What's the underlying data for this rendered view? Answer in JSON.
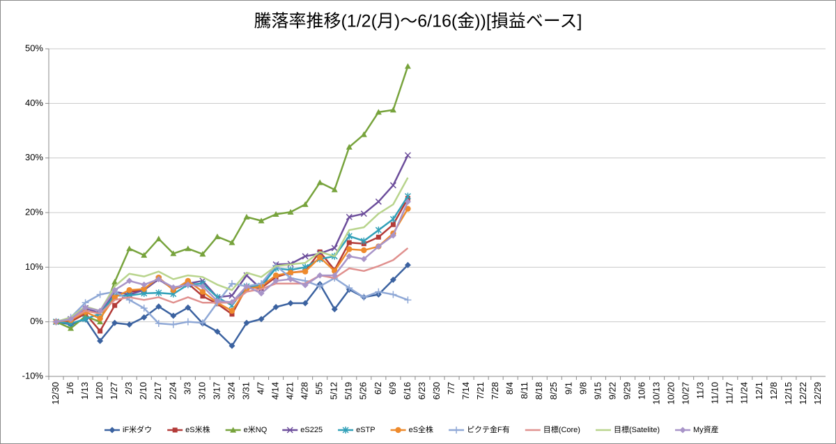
{
  "chart_data": {
    "type": "line",
    "title": "騰落率推移(1/2(月)～6/16(金))[損益ベース]",
    "categories": [
      "12/30",
      "1/6",
      "1/13",
      "1/20",
      "1/27",
      "2/3",
      "2/10",
      "2/17",
      "2/24",
      "3/3",
      "3/10",
      "3/17",
      "3/24",
      "3/31",
      "4/7",
      "4/14",
      "4/21",
      "4/28",
      "5/5",
      "5/12",
      "5/19",
      "5/26",
      "6/2",
      "6/9",
      "6/16",
      "6/23",
      "6/30",
      "7/7",
      "7/14",
      "7/21",
      "7/28",
      "8/4",
      "8/11",
      "8/18",
      "8/25",
      "9/1",
      "9/8",
      "9/15",
      "9/22",
      "9/29",
      "10/6",
      "10/13",
      "10/20",
      "10/27",
      "11/3",
      "11/10",
      "11/17",
      "11/24",
      "12/1",
      "12/8",
      "12/15",
      "12/22",
      "12/29"
    ],
    "ylim": [
      -10,
      50
    ],
    "yticks": [
      {
        "value": -10,
        "label": "-10%"
      },
      {
        "value": 0,
        "label": "0%"
      },
      {
        "value": 10,
        "label": "10%"
      },
      {
        "value": 20,
        "label": "20%"
      },
      {
        "value": 30,
        "label": "30%"
      },
      {
        "value": 40,
        "label": "40%"
      },
      {
        "value": 50,
        "label": "50%"
      }
    ],
    "grid": true,
    "legend": "bottom",
    "series": [
      {
        "name": "iF米ダウ",
        "color": "#3b62a0",
        "marker": "diamond",
        "values": [
          0,
          -0.5,
          0.5,
          -3.5,
          -0.2,
          -0.5,
          0.8,
          2.8,
          1.1,
          2.6,
          -0.3,
          -1.8,
          -4.4,
          -0.2,
          0.5,
          2.7,
          3.4,
          3.4,
          6.9,
          2.3,
          5.9,
          4.5,
          5.0,
          7.7,
          10.4,
          null,
          null,
          null,
          null,
          null,
          null,
          null,
          null,
          null,
          null,
          null,
          null,
          null,
          null,
          null,
          null,
          null,
          null,
          null,
          null,
          null,
          null,
          null,
          null,
          null,
          null,
          null,
          null
        ]
      },
      {
        "name": "eS米株",
        "color": "#b33b38",
        "marker": "square",
        "values": [
          0,
          0,
          1.5,
          -1.7,
          3.0,
          5.5,
          5.8,
          8.0,
          5.9,
          7.0,
          4.7,
          3.3,
          1.4,
          6.3,
          6.2,
          8.2,
          9.0,
          9.3,
          12.8,
          9.5,
          14.5,
          14.3,
          15.5,
          17.8,
          22.6,
          null,
          null,
          null,
          null,
          null,
          null,
          null,
          null,
          null,
          null,
          null,
          null,
          null,
          null,
          null,
          null,
          null,
          null,
          null,
          null,
          null,
          null,
          null,
          null,
          null,
          null,
          null,
          null
        ]
      },
      {
        "name": "e米NQ",
        "color": "#77a33c",
        "marker": "triangle",
        "values": [
          0,
          -1.2,
          1.0,
          0,
          7.3,
          13.4,
          12.2,
          15.2,
          12.5,
          13.4,
          12.4,
          15.6,
          14.5,
          19.2,
          18.5,
          19.7,
          20.1,
          21.5,
          25.5,
          24.2,
          32.0,
          34.3,
          38.4,
          38.8,
          46.8,
          null,
          null,
          null,
          null,
          null,
          null,
          null,
          null,
          null,
          null,
          null,
          null,
          null,
          null,
          null,
          null,
          null,
          null,
          null,
          null,
          null,
          null,
          null,
          null,
          null,
          null,
          null,
          null
        ]
      },
      {
        "name": "eS225",
        "color": "#6c4d9b",
        "marker": "x",
        "values": [
          0,
          0.5,
          2.5,
          1.5,
          5.5,
          5.0,
          5.8,
          7.8,
          6.0,
          7.0,
          7.5,
          4.5,
          4.8,
          8.5,
          6.0,
          10.5,
          10.6,
          12.0,
          12.5,
          13.5,
          19.2,
          19.8,
          22.0,
          25.0,
          30.5,
          null,
          null,
          null,
          null,
          null,
          null,
          null,
          null,
          null,
          null,
          null,
          null,
          null,
          null,
          null,
          null,
          null,
          null,
          null,
          null,
          null,
          null,
          null,
          null,
          null,
          null,
          null,
          null
        ]
      },
      {
        "name": "eSTP",
        "color": "#31a0b8",
        "marker": "star",
        "values": [
          0,
          -0.3,
          0.5,
          1.5,
          4.8,
          4.8,
          5.2,
          5.3,
          5.1,
          6.8,
          7.0,
          4.5,
          3.0,
          6.5,
          6.6,
          9.8,
          9.5,
          10.0,
          11.5,
          12.0,
          15.7,
          14.8,
          16.8,
          18.8,
          23.0,
          null,
          null,
          null,
          null,
          null,
          null,
          null,
          null,
          null,
          null,
          null,
          null,
          null,
          null,
          null,
          null,
          null,
          null,
          null,
          null,
          null,
          null,
          null,
          null,
          null,
          null,
          null,
          null
        ]
      },
      {
        "name": "eS全株",
        "color": "#ee8a2c",
        "marker": "circle",
        "values": [
          0,
          0.3,
          1.8,
          0.6,
          4.5,
          5.8,
          6.0,
          8.1,
          5.8,
          7.5,
          5.5,
          3.5,
          2.0,
          6.0,
          6.5,
          8.5,
          9.0,
          9.2,
          11.8,
          9.3,
          13.3,
          13.1,
          13.8,
          16.2,
          20.7,
          null,
          null,
          null,
          null,
          null,
          null,
          null,
          null,
          null,
          null,
          null,
          null,
          null,
          null,
          null,
          null,
          null,
          null,
          null,
          null,
          null,
          null,
          null,
          null,
          null,
          null,
          null,
          null
        ]
      },
      {
        "name": "ピクテ金F有",
        "color": "#8fa8d6",
        "marker": "plus",
        "values": [
          0,
          0.8,
          3.5,
          5.0,
          5.5,
          4.0,
          2.5,
          -0.3,
          -0.5,
          0,
          -0.2,
          3.5,
          7.0,
          6.5,
          7.0,
          10.3,
          8.0,
          7.5,
          6.5,
          8.0,
          6.2,
          4.5,
          5.5,
          5.0,
          4.0,
          null,
          null,
          null,
          null,
          null,
          null,
          null,
          null,
          null,
          null,
          null,
          null,
          null,
          null,
          null,
          null,
          null,
          null,
          null,
          null,
          null,
          null,
          null,
          null,
          null,
          null,
          null,
          null
        ]
      },
      {
        "name": "目標(Core)",
        "color": "#e0908e",
        "marker": "none",
        "values": [
          0,
          0.5,
          2.0,
          1.5,
          4.0,
          4.5,
          4.0,
          4.5,
          3.5,
          4.5,
          3.5,
          3.5,
          3.5,
          5.5,
          6.0,
          7.0,
          7.0,
          7.0,
          8.5,
          8.0,
          9.8,
          9.3,
          10.2,
          11.3,
          13.5,
          null,
          null,
          null,
          null,
          null,
          null,
          null,
          null,
          null,
          null,
          null,
          null,
          null,
          null,
          null,
          null,
          null,
          null,
          null,
          null,
          null,
          null,
          null,
          null,
          null,
          null,
          null,
          null
        ]
      },
      {
        "name": "目標(Satelite)",
        "color": "#b8d48c",
        "marker": "none",
        "values": [
          0,
          0.8,
          2.8,
          2.0,
          6.5,
          8.8,
          8.3,
          9.2,
          7.8,
          8.5,
          8.2,
          6.8,
          5.8,
          9.0,
          8.2,
          10.2,
          10.5,
          10.8,
          12.8,
          12.0,
          16.8,
          17.3,
          19.8,
          21.5,
          26.4,
          null,
          null,
          null,
          null,
          null,
          null,
          null,
          null,
          null,
          null,
          null,
          null,
          null,
          null,
          null,
          null,
          null,
          null,
          null,
          null,
          null,
          null,
          null,
          null,
          null,
          null,
          null,
          null
        ]
      },
      {
        "name": "My資産",
        "color": "#a894c8",
        "marker": "diamond",
        "values": [
          0,
          0.5,
          2.6,
          2.0,
          5.8,
          7.5,
          6.8,
          7.8,
          6.3,
          6.8,
          6.5,
          3.8,
          3.6,
          6.5,
          5.2,
          7.5,
          7.8,
          6.7,
          8.5,
          8.5,
          12.0,
          11.5,
          13.8,
          15.8,
          22.0,
          null,
          null,
          null,
          null,
          null,
          null,
          null,
          null,
          null,
          null,
          null,
          null,
          null,
          null,
          null,
          null,
          null,
          null,
          null,
          null,
          null,
          null,
          null,
          null,
          null,
          null,
          null,
          null
        ]
      }
    ]
  }
}
